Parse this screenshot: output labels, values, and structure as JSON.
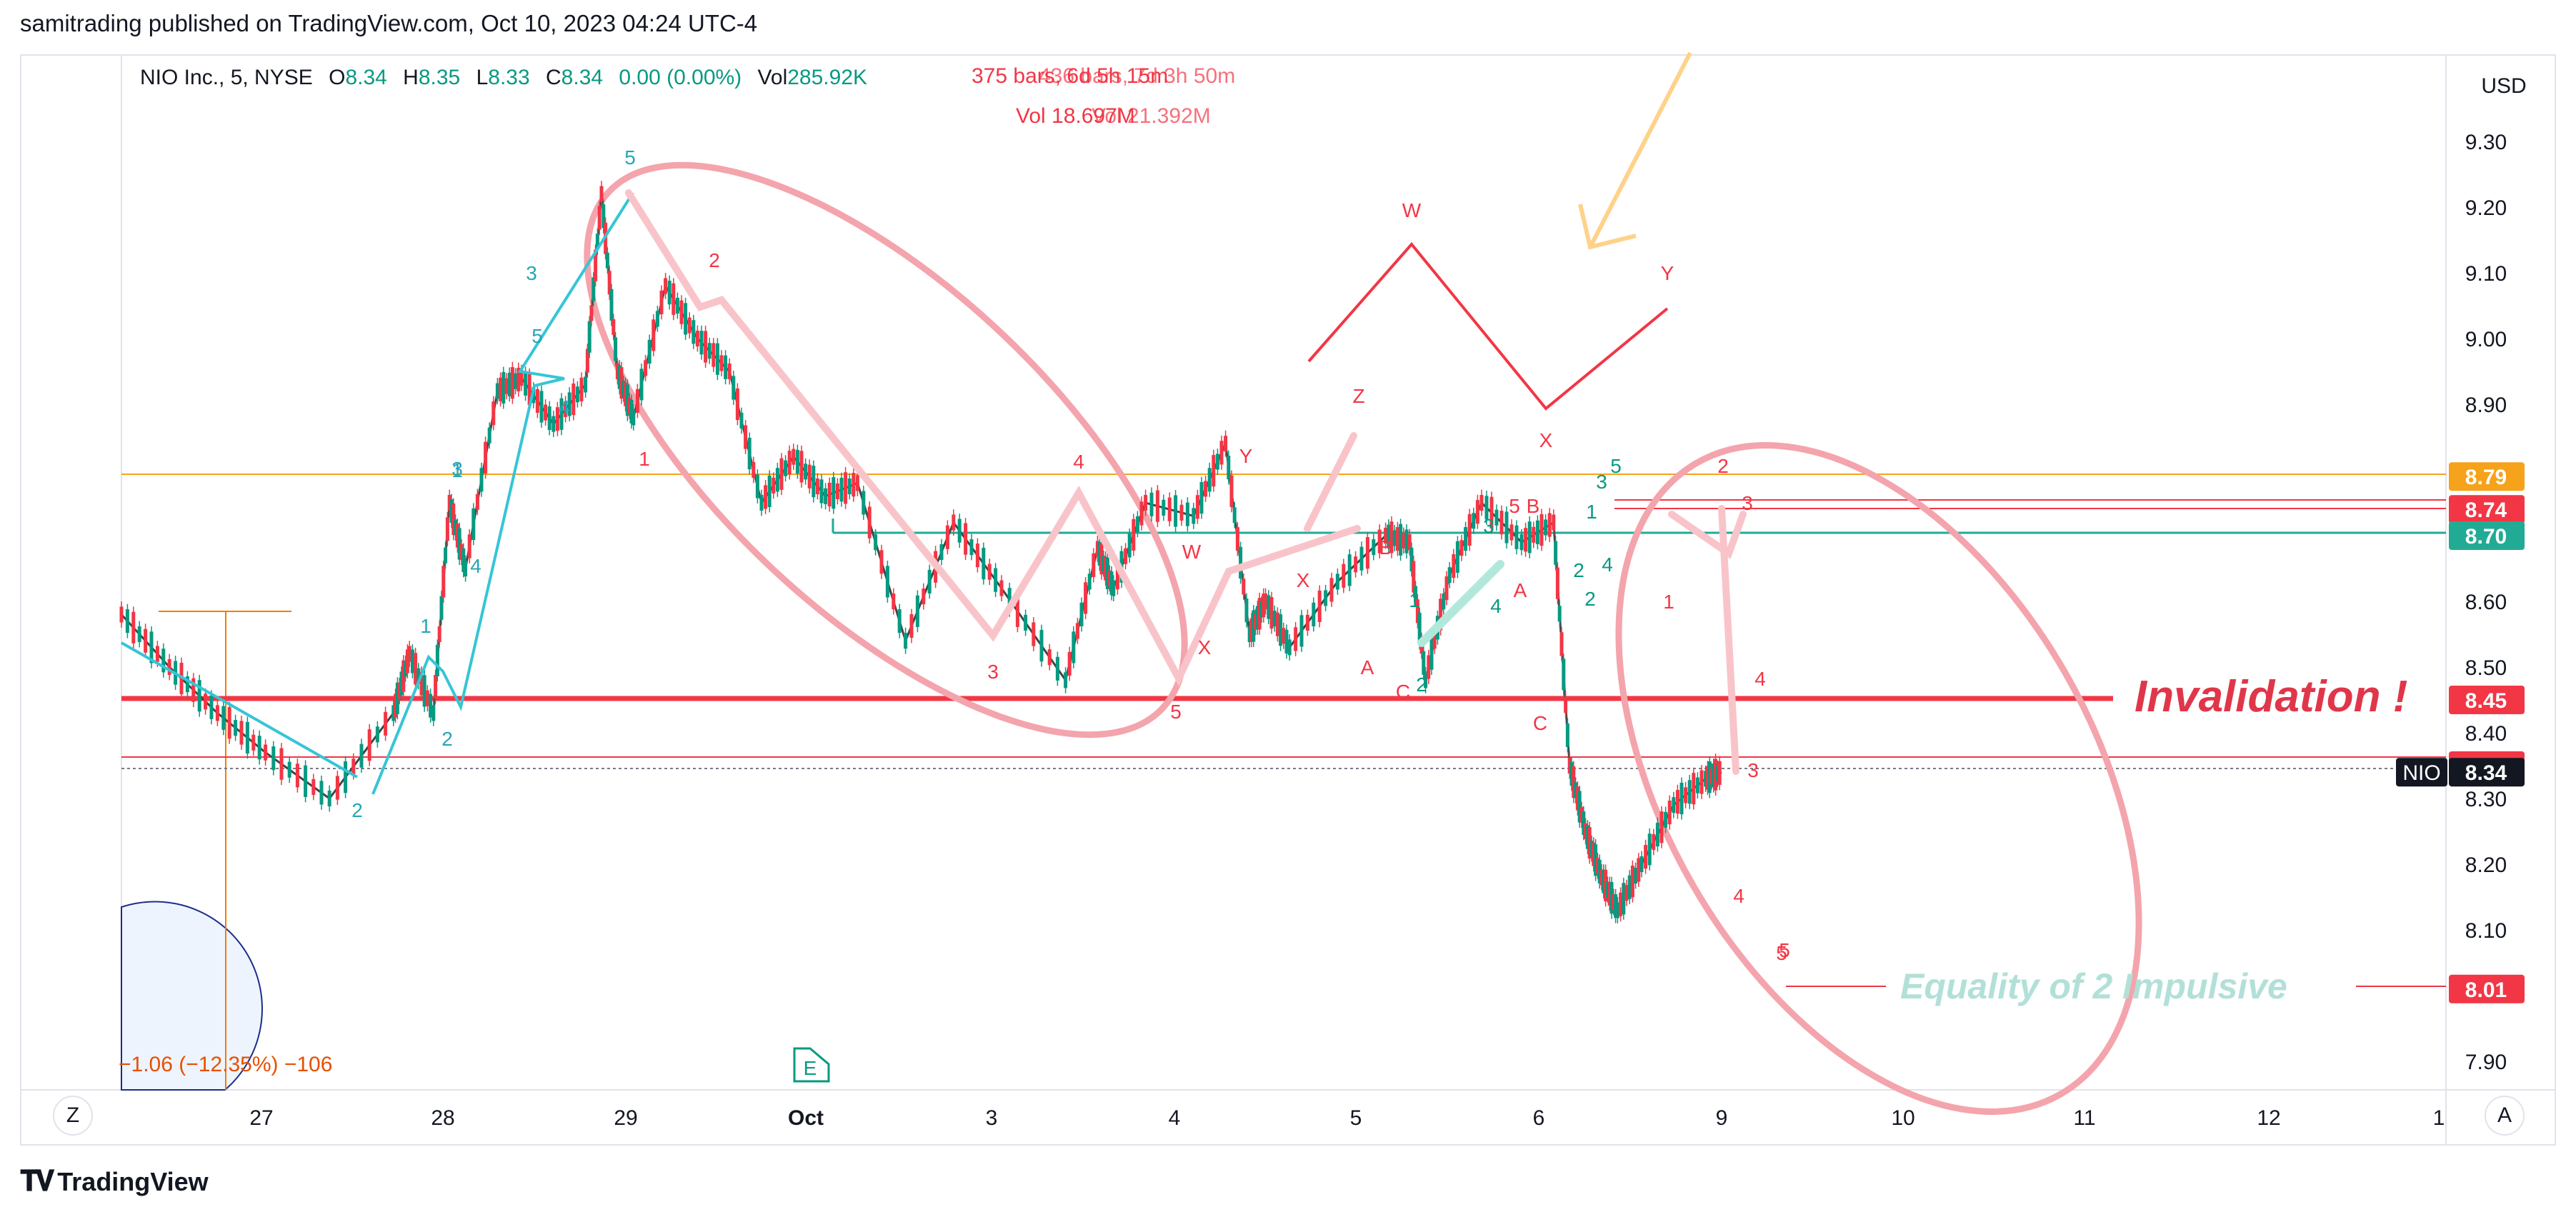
{
  "header": {
    "publisher_line": "samitrading published on TradingView.com, Oct 10, 2023 04:24 UTC-4"
  },
  "brand": {
    "name": "TradingView",
    "icon": "tradingview-logo-icon"
  },
  "legend": {
    "symbol": "NIO Inc., 5, NYSE",
    "o_label": "O",
    "o_value": "8.34",
    "h_label": "H",
    "h_value": "8.35",
    "l_label": "L",
    "l_value": "8.33",
    "c_label": "C",
    "c_value": "8.34",
    "change": "0.00 (0.00%)",
    "vol_label": "Vol",
    "vol_value": "285.92K"
  },
  "measure_overlay": {
    "line1": "375 bars, 6d 5h 15m",
    "line2": "Vol 18.697M",
    "ghost1": "436 bars, 7d 3h 50m",
    "ghost2": "Vol 21.392M"
  },
  "bottom_left_measure": "−1.06 (−12.35%) −106",
  "earnings_badge": "E",
  "corner_buttons": {
    "left": "Z",
    "right": "A"
  },
  "chart_data": {
    "type": "candlestick",
    "currency": "USD",
    "ylim": [
      7.86,
      9.35
    ],
    "yticks": [
      "9.30",
      "9.20",
      "9.10",
      "9.00",
      "8.90",
      "8.80",
      "8.70",
      "8.60",
      "8.50",
      "8.40",
      "8.30",
      "8.20",
      "8.10",
      "7.90"
    ],
    "xticks": [
      "27",
      "28",
      "29",
      "Oct",
      "3",
      "4",
      "5",
      "6",
      "9",
      "10",
      "11",
      "12",
      "1"
    ],
    "symbol_tag": "NIO",
    "last_price": "8.34",
    "price_tags": [
      {
        "value": "8.79",
        "color": "#f7a21b"
      },
      {
        "value": "8.74",
        "color": "#f23645"
      },
      {
        "value": "8.70",
        "color": "#22ab94"
      },
      {
        "value": "8.45",
        "color": "#f23645"
      },
      {
        "value": "8.35",
        "color": "#f23645"
      },
      {
        "value": "8.01",
        "color": "#f23645"
      }
    ],
    "price_path": [
      [
        0,
        8.58
      ],
      [
        0.3,
        8.5
      ],
      [
        0.6,
        8.43
      ],
      [
        0.9,
        8.37
      ],
      [
        1.3,
        8.3
      ],
      [
        1.7,
        8.43
      ],
      [
        1.8,
        8.52
      ],
      [
        1.95,
        8.43
      ],
      [
        2.05,
        8.75
      ],
      [
        2.15,
        8.65
      ],
      [
        2.35,
        8.92
      ],
      [
        2.5,
        8.94
      ],
      [
        2.7,
        8.87
      ],
      [
        2.9,
        8.93
      ],
      [
        3.0,
        9.22
      ],
      [
        3.1,
        8.95
      ],
      [
        3.2,
        8.88
      ],
      [
        3.4,
        9.08
      ],
      [
        3.6,
        9.0
      ],
      [
        3.8,
        8.95
      ],
      [
        4.0,
        8.75
      ],
      [
        4.2,
        8.82
      ],
      [
        4.4,
        8.76
      ],
      [
        4.6,
        8.78
      ],
      [
        4.9,
        8.54
      ],
      [
        5.2,
        8.72
      ],
      [
        5.5,
        8.62
      ],
      [
        5.9,
        8.48
      ],
      [
        6.1,
        8.68
      ],
      [
        6.2,
        8.62
      ],
      [
        6.4,
        8.75
      ],
      [
        6.7,
        8.73
      ],
      [
        6.9,
        8.84
      ],
      [
        7.05,
        8.55
      ],
      [
        7.15,
        8.6
      ],
      [
        7.3,
        8.53
      ],
      [
        7.6,
        8.63
      ],
      [
        7.9,
        8.7
      ],
      [
        8.05,
        8.69
      ],
      [
        8.15,
        8.48
      ],
      [
        8.3,
        8.64
      ],
      [
        8.5,
        8.75
      ],
      [
        8.75,
        8.69
      ],
      [
        8.95,
        8.72
      ],
      [
        9.05,
        8.35
      ],
      [
        9.15,
        8.25
      ],
      [
        9.25,
        8.18
      ],
      [
        9.35,
        8.13
      ],
      [
        9.5,
        8.2
      ],
      [
        9.7,
        8.29
      ],
      [
        9.9,
        8.33
      ],
      [
        10.0,
        8.34
      ]
    ]
  },
  "annotations": {
    "invalidation": "Invalidation !",
    "equality": "Equality of 2 Impulsive",
    "wave_labels": [
      "5",
      "2",
      "1",
      "3",
      "4",
      "5",
      "3",
      "4",
      "1",
      "2",
      "2",
      "3",
      "4",
      "5",
      "W",
      "X",
      "Y",
      "Z",
      "B",
      "A",
      "C",
      "1",
      "2",
      "3",
      "4",
      "5",
      "A",
      "B",
      "C",
      "1",
      "2",
      "3",
      "4",
      "5",
      "1",
      "2",
      "3",
      "4",
      "5",
      "W",
      "X",
      "Y",
      "X",
      "1",
      "2",
      "3",
      "4",
      "5"
    ]
  }
}
